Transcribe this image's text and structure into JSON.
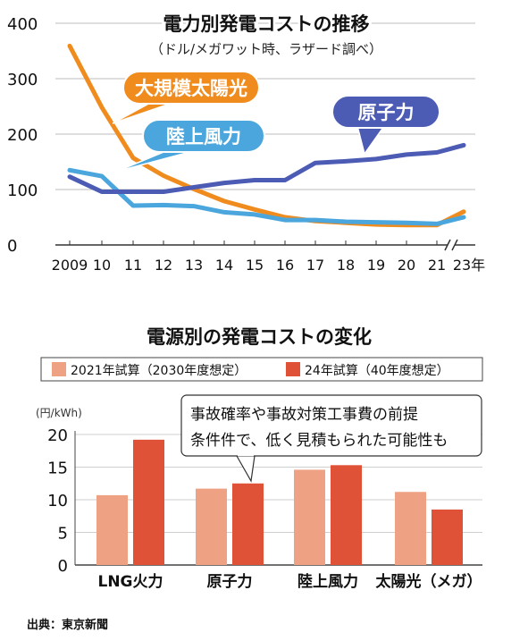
{
  "chart_data": [
    {
      "type": "line",
      "title": "電力別発電コストの推移",
      "subtitle": "（ドル/メガワット時、ラザード調べ）",
      "x": [
        "2009",
        "10",
        "11",
        "12",
        "13",
        "14",
        "15",
        "16",
        "17",
        "18",
        "19",
        "20",
        "21",
        "23年"
      ],
      "ylim": [
        0,
        400
      ],
      "yticks": [
        "0",
        "100",
        "200",
        "300",
        "400"
      ],
      "grid": true,
      "series": [
        {
          "name": "大規模太陽光",
          "color": "#f08c1e",
          "values": [
            359,
            248,
            157,
            125,
            101,
            79,
            64,
            50,
            43,
            40,
            37,
            36,
            36,
            60
          ]
        },
        {
          "name": "陸上風力",
          "color": "#4aa6dc",
          "values": [
            135,
            124,
            71,
            72,
            70,
            59,
            55,
            45,
            45,
            42,
            41,
            40,
            38,
            50
          ]
        },
        {
          "name": "原子力",
          "color": "#4c5bb4",
          "values": [
            123,
            96,
            96,
            96,
            104,
            112,
            117,
            117,
            148,
            151,
            155,
            163,
            167,
            180
          ]
        }
      ]
    },
    {
      "type": "bar",
      "title": "電源別の発電コストの変化",
      "ylabel": "(円/kWh)",
      "ylim": [
        0,
        20
      ],
      "yticks": [
        "0",
        "5",
        "10",
        "15",
        "20"
      ],
      "grid": true,
      "categories": [
        "LNG火力",
        "原子力",
        "陸上風力",
        "太陽光（メガ）"
      ],
      "series": [
        {
          "name": "2021年試算（2030年度想定）",
          "color": "#eea283",
          "values": [
            10.7,
            11.7,
            14.6,
            11.2
          ]
        },
        {
          "name": "24年試算（40年度想定）",
          "color": "#df5238",
          "values": [
            19.2,
            12.5,
            15.3,
            8.5
          ]
        }
      ],
      "annotation": [
        "事故確率や事故対策工事費の前提",
        "条件件で、低く見積もられた可能性も"
      ]
    }
  ],
  "source": "出典：東京新聞"
}
